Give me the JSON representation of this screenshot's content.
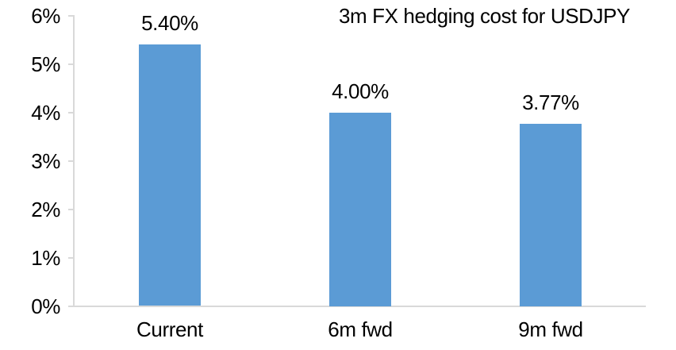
{
  "chart_data": {
    "type": "bar",
    "title": "3m FX hedging cost for USDJPY",
    "categories": [
      "Current",
      "6m fwd",
      "9m fwd"
    ],
    "values": [
      5.4,
      4.0,
      3.77
    ],
    "data_labels": [
      "5.40%",
      "4.00%",
      "3.77%"
    ],
    "series": [
      {
        "name": "3m FX hedging cost",
        "values": [
          5.4,
          4.0,
          3.77
        ]
      }
    ],
    "xlabel": "",
    "ylabel": "",
    "ylim": [
      0,
      6
    ],
    "y_tick_interval": 1,
    "y_ticks": [
      {
        "value": 6,
        "label": "6%"
      },
      {
        "value": 5,
        "label": "5%"
      },
      {
        "value": 4,
        "label": "4%"
      },
      {
        "value": 3,
        "label": "3%"
      },
      {
        "value": 2,
        "label": "2%"
      },
      {
        "value": 1,
        "label": "1%"
      },
      {
        "value": 0,
        "label": "0%"
      }
    ],
    "grid": false,
    "legend_position": "none",
    "colors": {
      "bar": "#5B9BD5",
      "axis": "#D9D9D9",
      "text": "#000000",
      "background": "#FFFFFF"
    }
  }
}
